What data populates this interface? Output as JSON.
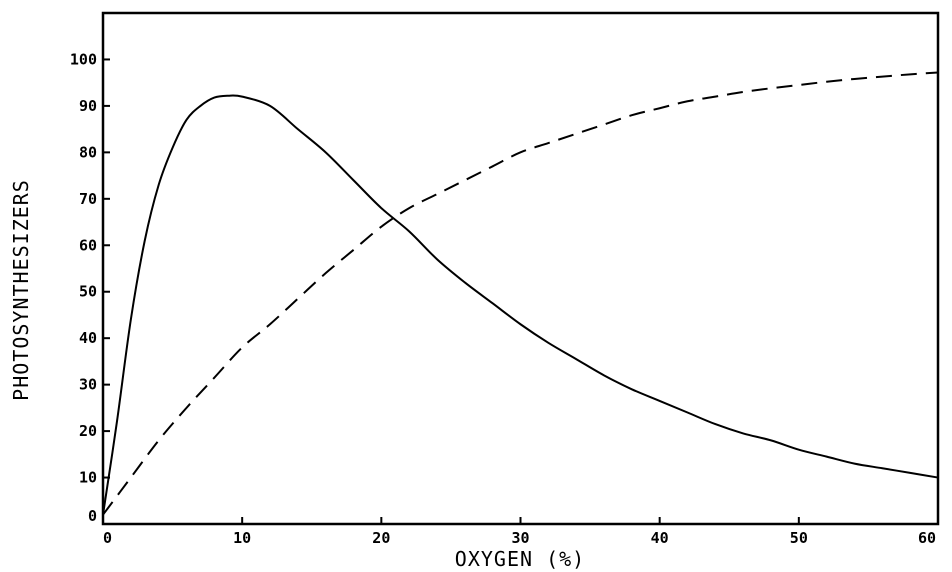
{
  "chart_data": {
    "type": "line",
    "title": "",
    "xlabel": "OXYGEN (%)",
    "ylabel": "PHOTOSYNTHESIZERS",
    "xlim": [
      0,
      60
    ],
    "ylim": [
      0,
      110
    ],
    "x_ticks": [
      "0",
      "10",
      "20",
      "30",
      "40",
      "50",
      "60"
    ],
    "y_ticks": [
      "0",
      "10",
      "20",
      "30",
      "40",
      "50",
      "60",
      "70",
      "80",
      "90",
      "100"
    ],
    "grid": false,
    "legend": "none",
    "series": [
      {
        "style": "solid",
        "color": "#000000",
        "x": [
          0,
          1,
          2,
          3,
          4,
          5,
          6,
          7,
          8,
          9,
          10,
          12,
          14,
          16,
          18,
          20,
          22,
          24,
          26,
          28,
          30,
          32,
          34,
          36,
          38,
          40,
          42,
          44,
          46,
          48,
          50,
          52,
          54,
          56,
          58,
          60
        ],
        "y": [
          2,
          22,
          44,
          61,
          73,
          81,
          87,
          90,
          91.8,
          92.2,
          92,
          90,
          85,
          80,
          74,
          68,
          63,
          57,
          52,
          47.5,
          43,
          39,
          35.5,
          32,
          29,
          26.5,
          24,
          21.5,
          19.5,
          18,
          16,
          14.5,
          13,
          12,
          11,
          10
        ]
      },
      {
        "style": "dashed",
        "color": "#000000",
        "x": [
          0,
          2,
          4,
          6,
          8,
          10,
          12,
          14,
          16,
          18,
          20,
          22,
          24,
          26,
          28,
          30,
          32,
          34,
          36,
          38,
          40,
          42,
          44,
          46,
          48,
          50,
          52,
          54,
          56,
          58,
          60
        ],
        "y": [
          2,
          10,
          18,
          25,
          31.5,
          38,
          43,
          48.5,
          54,
          59,
          64,
          68,
          71,
          74,
          77,
          80,
          82,
          84,
          86,
          88,
          89.5,
          91,
          92,
          93,
          93.8,
          94.5,
          95.2,
          95.8,
          96.3,
          96.8,
          97.2
        ]
      }
    ]
  }
}
